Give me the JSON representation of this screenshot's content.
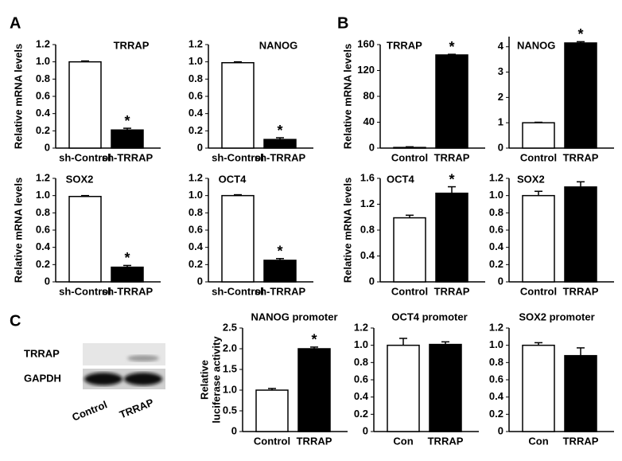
{
  "panel_labels": [
    "A",
    "B",
    "C"
  ],
  "blot": {
    "rows": [
      "TRRAP",
      "GAPDH"
    ],
    "lanes": [
      "Control",
      "TRRAP"
    ]
  },
  "chart_data": [
    {
      "type": "bar",
      "title": "TRRAP",
      "ylabel": "Relative mRNA levels",
      "categories": [
        "sh-Control",
        "sh-TRRAP"
      ],
      "values": [
        1.0,
        0.21
      ],
      "errors": [
        0.01,
        0.02
      ],
      "significance": [
        null,
        "*"
      ],
      "colors": [
        "#ffffff",
        "#000000"
      ],
      "ylim": [
        0,
        1.2
      ],
      "yticks": [
        0,
        0.2,
        0.4,
        0.6,
        0.8,
        {
          "value": 1,
          "label": "1.0"
        },
        1.2
      ]
    },
    {
      "type": "bar",
      "title": "NANOG",
      "categories": [
        "sh-Control",
        "sh-TRRAP"
      ],
      "values": [
        0.99,
        0.1
      ],
      "errors": [
        0.01,
        0.02
      ],
      "significance": [
        null,
        "*"
      ],
      "colors": [
        "#ffffff",
        "#000000"
      ],
      "ylim": [
        0,
        1.2
      ],
      "yticks": [
        0,
        0.2,
        0.4,
        0.6,
        0.8,
        {
          "value": 1,
          "label": "1.0"
        },
        1.2
      ]
    },
    {
      "type": "bar",
      "title": "SOX2",
      "ylabel": "Relative mRNA levels",
      "categories": [
        "sh-Control",
        "sh-TRRAP"
      ],
      "values": [
        0.99,
        0.17
      ],
      "errors": [
        0.01,
        0.02
      ],
      "significance": [
        null,
        "*"
      ],
      "colors": [
        "#ffffff",
        "#000000"
      ],
      "ylim": [
        0,
        1.2
      ],
      "yticks": [
        0,
        0.2,
        0.4,
        0.6,
        0.8,
        {
          "value": 1,
          "label": "1.0"
        },
        1.2
      ]
    },
    {
      "type": "bar",
      "title": "OCT4",
      "categories": [
        "sh-Control",
        "sh-TRRAP"
      ],
      "values": [
        1.0,
        0.25
      ],
      "errors": [
        0.01,
        0.02
      ],
      "significance": [
        null,
        "*"
      ],
      "colors": [
        "#ffffff",
        "#000000"
      ],
      "ylim": [
        0,
        1.2
      ],
      "yticks": [
        0,
        0.2,
        0.4,
        0.6,
        0.8,
        {
          "value": 1,
          "label": "1.0"
        },
        1.2
      ]
    },
    {
      "type": "bar",
      "title": "TRRAP",
      "ylabel": "Relative mRNA levels",
      "categories": [
        "Control",
        "TRRAP"
      ],
      "values": [
        1,
        144
      ],
      "errors": [
        1,
        1
      ],
      "significance": [
        null,
        "*"
      ],
      "colors": [
        "#ffffff",
        "#000000"
      ],
      "ylim": [
        0,
        160
      ],
      "yticks": [
        0,
        40,
        80,
        120,
        160
      ]
    },
    {
      "type": "bar",
      "title": "NANOG",
      "categories": [
        "Control",
        "TRRAP"
      ],
      "values": [
        1.0,
        4.15
      ],
      "errors": [
        0.02,
        0.05
      ],
      "significance": [
        null,
        "*"
      ],
      "colors": [
        "#ffffff",
        "#000000"
      ],
      "ylim": [
        0,
        4.4
      ],
      "yticks": [
        0,
        1,
        2,
        3,
        4
      ]
    },
    {
      "type": "bar",
      "title": "OCT4",
      "ylabel": "Relative mRNA levels",
      "categories": [
        "Control",
        "TRRAP"
      ],
      "values": [
        0.99,
        1.37
      ],
      "errors": [
        0.04,
        0.1
      ],
      "significance": [
        null,
        "*"
      ],
      "colors": [
        "#ffffff",
        "#000000"
      ],
      "ylim": [
        0,
        1.6
      ],
      "yticks": [
        0,
        0.4,
        0.8,
        1.2,
        1.6
      ]
    },
    {
      "type": "bar",
      "title": "SOX2",
      "categories": [
        "Control",
        "TRRAP"
      ],
      "values": [
        1.0,
        1.1
      ],
      "errors": [
        0.05,
        0.06
      ],
      "significance": [
        null,
        null
      ],
      "colors": [
        "#ffffff",
        "#000000"
      ],
      "ylim": [
        0,
        1.2
      ],
      "yticks": [
        0,
        0.2,
        0.4,
        0.6,
        0.8,
        {
          "value": 1,
          "label": "1.0"
        },
        1.2
      ]
    },
    {
      "type": "bar",
      "title": "NANOG promoter",
      "ylabel": [
        "Relative",
        "luciferase activity"
      ],
      "categories": [
        "Control",
        "TRRAP"
      ],
      "values": [
        1.0,
        2.0
      ],
      "errors": [
        0.04,
        0.04
      ],
      "significance": [
        null,
        "*"
      ],
      "colors": [
        "#ffffff",
        "#000000"
      ],
      "ylim": [
        0,
        2.5
      ],
      "yticks": [
        0,
        0.5,
        {
          "value": 1,
          "label": "1.0"
        },
        1.5,
        {
          "value": 2,
          "label": "2.0"
        },
        2.5
      ]
    },
    {
      "type": "bar",
      "title": "OCT4 promoter",
      "categories": [
        "Con",
        "TRRAP"
      ],
      "values": [
        1.0,
        1.01
      ],
      "errors": [
        0.08,
        0.03
      ],
      "significance": [
        null,
        null
      ],
      "colors": [
        "#ffffff",
        "#000000"
      ],
      "ylim": [
        0,
        1.2
      ],
      "yticks": [
        0,
        0.2,
        0.4,
        0.6,
        0.8,
        {
          "value": 1,
          "label": "1.0"
        },
        1.2
      ]
    },
    {
      "type": "bar",
      "title": "SOX2 promoter",
      "categories": [
        "Con",
        "TRRAP"
      ],
      "values": [
        1.0,
        0.88
      ],
      "errors": [
        0.03,
        0.09
      ],
      "significance": [
        null,
        null
      ],
      "colors": [
        "#ffffff",
        "#000000"
      ],
      "ylim": [
        0,
        1.2
      ],
      "yticks": [
        0,
        0.2,
        0.4,
        0.6,
        0.8,
        {
          "value": 1,
          "label": "1.0"
        },
        1.2
      ]
    }
  ]
}
